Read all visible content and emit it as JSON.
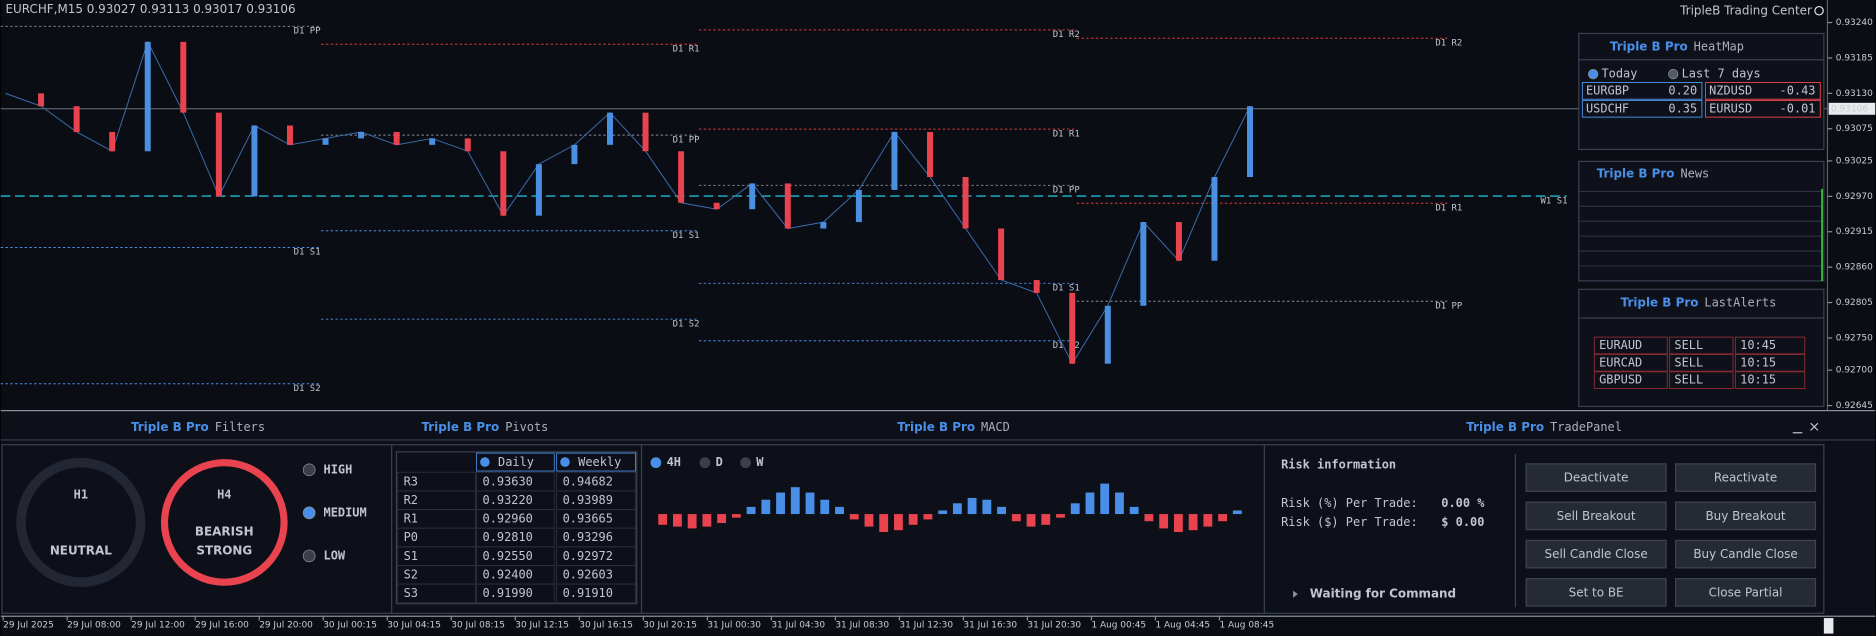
{
  "chart_data": {
    "type": "line",
    "title": "EURCHF,M15  0.93027 0.93113 0.93017 0.93106",
    "brand": "TripleB Trading Center",
    "values": [
      0.9313,
      0.9311,
      0.9307,
      0.9304,
      0.9321,
      0.931,
      0.9297,
      0.9308,
      0.9305,
      0.9306,
      0.9307,
      0.9305,
      0.9306,
      0.9304,
      0.9294,
      0.9302,
      0.9305,
      0.931,
      0.9304,
      0.9296,
      0.9295,
      0.9299,
      0.9292,
      0.9293,
      0.9298,
      0.9307,
      0.93,
      0.9292,
      0.9284,
      0.9282,
      0.9271,
      0.928,
      0.9293,
      0.9287,
      0.93,
      0.9311
    ],
    "up_color": "#4a90e2",
    "down_color": "#e8434f",
    "ylim": [
      0.92638,
      0.93275
    ],
    "yticks": [
      {
        "value": 0.9324,
        "label": "0.93240"
      },
      0.93185,
      {
        "value": 0.9313,
        "label": "0.93130"
      },
      0.93075,
      0.93025,
      {
        "value": 0.9297,
        "label": "0.92970"
      },
      0.92915,
      {
        "value": 0.9286,
        "label": "0.92860"
      },
      0.92805,
      {
        "value": 0.9275,
        "label": "0.92750"
      },
      {
        "value": 0.927,
        "label": "0.92700"
      },
      0.92645
    ],
    "current_price": 0.93106,
    "x_labels": [
      "29 Jul 2025",
      "29 Jul 08:00",
      "29 Jul 12:00",
      "29 Jul 16:00",
      "29 Jul 20:00",
      "30 Jul 00:15",
      "30 Jul 04:15",
      "30 Jul 08:15",
      "30 Jul 12:15",
      "30 Jul 16:15",
      "30 Jul 20:15",
      "31 Jul 00:30",
      "31 Jul 04:30",
      "31 Jul 08:30",
      "31 Jul 12:30",
      "31 Jul 16:30",
      "31 Jul 20:30",
      "1 Aug 00:45",
      "1 Aug 04:45",
      "1 Aug 08:45"
    ],
    "pivot_labels": [
      "D1 PP",
      "D1 R1",
      "D1 R2",
      "D1 R2",
      "D1 PP",
      "D1 R1",
      "D1 PP",
      "D1 R1",
      "D1 S1",
      "D1 S1",
      "D1 S1",
      "D1 PP",
      "D1 S2",
      "D1 S2",
      "D1 S2",
      "W1 S1"
    ]
  },
  "heatmap": {
    "brand": "Triple B Pro",
    "title": "HeatMap",
    "options": [
      "Today",
      "Last 7 days"
    ],
    "cells": [
      {
        "pair": "EURGBP",
        "value": "0.20"
      },
      {
        "pair": "NZDUSD",
        "value": "-0.43"
      },
      {
        "pair": "USDCHF",
        "value": "0.35"
      },
      {
        "pair": "EURUSD",
        "value": "-0.01"
      }
    ]
  },
  "news": {
    "brand": "Triple B Pro",
    "title": "News"
  },
  "alerts": {
    "brand": "Triple B Pro",
    "title": "LastAlerts",
    "rows": [
      [
        "EURAUD",
        "SELL",
        "10:45"
      ],
      [
        "EURCAD",
        "SELL",
        "10:15"
      ],
      [
        "GBPUSD",
        "SELL",
        "10:15"
      ]
    ]
  },
  "filters": {
    "brand": "Triple B Pro",
    "title": "Filters",
    "gauges": [
      {
        "timeframe": "H1",
        "status": [
          "NEUTRAL"
        ]
      },
      {
        "timeframe": "H4",
        "status": [
          "BEARISH",
          "STRONG"
        ]
      }
    ],
    "levels": [
      "HIGH",
      "MEDIUM",
      "LOW"
    ]
  },
  "pivots": {
    "brand": "Triple B Pro",
    "title": "Pivots",
    "columns": [
      "Daily",
      "Weekly"
    ],
    "rows": [
      [
        "R3",
        "0.93630",
        "0.94682"
      ],
      [
        "R2",
        "0.93220",
        "0.93989"
      ],
      [
        "R1",
        "0.92960",
        "0.93665"
      ],
      [
        "P0",
        "0.92810",
        "0.93296"
      ],
      [
        "S1",
        "0.92550",
        "0.92972"
      ],
      [
        "S2",
        "0.92400",
        "0.92603"
      ],
      [
        "S3",
        "0.91990",
        "0.91910"
      ]
    ]
  },
  "macd": {
    "brand": "Triple B Pro",
    "title": "MACD",
    "timeframes": [
      "4H",
      "D",
      "W"
    ],
    "histogram": [
      -0.3,
      -0.35,
      -0.4,
      -0.35,
      -0.25,
      -0.1,
      0.2,
      0.4,
      0.6,
      0.75,
      0.6,
      0.4,
      0.2,
      -0.15,
      -0.35,
      -0.5,
      -0.45,
      -0.3,
      -0.15,
      0.1,
      0.3,
      0.45,
      0.4,
      0.2,
      -0.2,
      -0.35,
      -0.3,
      -0.1,
      0.3,
      0.6,
      0.85,
      0.6,
      0.2,
      -0.2,
      -0.4,
      -0.5,
      -0.45,
      -0.35,
      -0.2,
      0.1
    ]
  },
  "trade_panel": {
    "brand": "Triple B Pro",
    "title": "TradePanel",
    "risk_title": "Risk information",
    "risk_rows": [
      [
        "Risk (%) Per Trade:",
        "0.00 %"
      ],
      [
        "Risk ($) Per Trade:",
        "$ 0.00"
      ]
    ],
    "buttons": [
      [
        "Deactivate",
        "Reactivate"
      ],
      [
        "Sell Breakout",
        "Buy Breakout"
      ],
      [
        "Sell Candle Close",
        "Buy Candle Close"
      ],
      [
        "Set to BE",
        "Close Partial"
      ]
    ],
    "status": "Waiting for Command"
  }
}
